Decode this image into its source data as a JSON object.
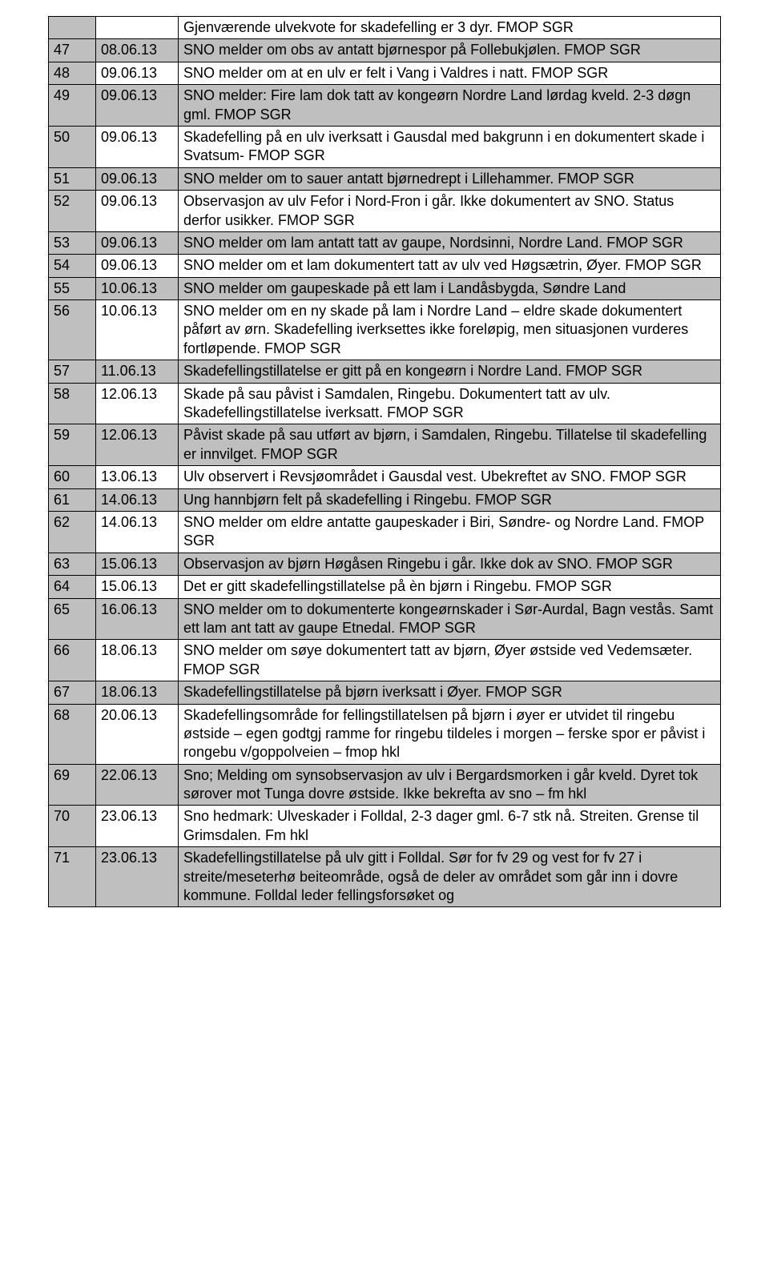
{
  "header_text": "Gjenværende ulvekvote for skadefelling er 3 dyr. FMOP SGR",
  "rows": [
    {
      "num": "47",
      "date": "08.06.13",
      "text": "SNO melder om obs av antatt bjørnespor på Follebukjølen. FMOP SGR",
      "shaded": true
    },
    {
      "num": "48",
      "date": "09.06.13",
      "text": "SNO melder om at en ulv er felt i Vang i Valdres i natt. FMOP SGR",
      "shaded": false
    },
    {
      "num": "49",
      "date": "09.06.13",
      "text": "SNO melder: Fire lam dok tatt av kongeørn Nordre Land lørdag kveld. 2-3 døgn gml. FMOP SGR",
      "shaded": true
    },
    {
      "num": "50",
      "date": "09.06.13",
      "text": "Skadefelling på en ulv iverksatt i Gausdal med bakgrunn i en dokumentert skade i Svatsum- FMOP SGR",
      "shaded": false
    },
    {
      "num": "51",
      "date": "09.06.13",
      "text": "SNO melder om to sauer antatt bjørnedrept i Lillehammer. FMOP SGR",
      "shaded": true
    },
    {
      "num": "52",
      "date": "09.06.13",
      "text": "Observasjon av ulv Fefor i Nord-Fron i går. Ikke dokumentert av SNO. Status derfor usikker. FMOP SGR",
      "shaded": false
    },
    {
      "num": "53",
      "date": "09.06.13",
      "text": "SNO melder om lam antatt tatt av gaupe, Nordsinni, Nordre Land. FMOP SGR",
      "shaded": true
    },
    {
      "num": "54",
      "date": "09.06.13",
      "text": "SNO melder om et lam dokumentert tatt av ulv ved Høgsætrin, Øyer. FMOP SGR",
      "shaded": false
    },
    {
      "num": "55",
      "date": "10.06.13",
      "text": "SNO melder om gaupeskade på ett lam i Landåsbygda, Søndre Land",
      "shaded": true
    },
    {
      "num": "56",
      "date": "10.06.13",
      "text": "SNO melder om en ny skade på lam i Nordre Land – eldre skade dokumentert påført av ørn. Skadefelling iverksettes ikke foreløpig, men situasjonen vurderes fortløpende. FMOP SGR",
      "shaded": false
    },
    {
      "num": "57",
      "date": "11.06.13",
      "text": "Skadefellingstillatelse er gitt på en kongeørn i Nordre Land. FMOP SGR",
      "shaded": true
    },
    {
      "num": "58",
      "date": "12.06.13",
      "text": "Skade på sau påvist i Samdalen, Ringebu. Dokumentert tatt av ulv. Skadefellingstillatelse iverksatt. FMOP SGR",
      "shaded": false
    },
    {
      "num": "59",
      "date": "12.06.13",
      "text": "Påvist skade på sau utført av bjørn, i Samdalen, Ringebu. Tillatelse til skadefelling er innvilget. FMOP SGR",
      "shaded": true
    },
    {
      "num": "60",
      "date": "13.06.13",
      "text": "Ulv observert i Revsjøområdet i Gausdal vest. Ubekreftet av SNO. FMOP SGR",
      "shaded": false
    },
    {
      "num": "61",
      "date": "14.06.13",
      "text": "Ung hannbjørn felt på skadefelling i Ringebu. FMOP SGR",
      "shaded": true
    },
    {
      "num": "62",
      "date": "14.06.13",
      "text": "SNO melder om eldre antatte gaupeskader i Biri, Søndre- og Nordre Land. FMOP SGR",
      "shaded": false
    },
    {
      "num": "63",
      "date": "15.06.13",
      "text": "Observasjon av bjørn Høgåsen Ringebu i går. Ikke dok av SNO. FMOP SGR",
      "shaded": true
    },
    {
      "num": "64",
      "date": "15.06.13",
      "text": "Det er gitt skadefellingstillatelse på èn bjørn i Ringebu. FMOP SGR",
      "shaded": false
    },
    {
      "num": "65",
      "date": "16.06.13",
      "text": "SNO melder om to dokumenterte kongeørnskader i Sør-Aurdal, Bagn vestås. Samt ett lam ant tatt av gaupe Etnedal. FMOP SGR",
      "shaded": true
    },
    {
      "num": "66",
      "date": "18.06.13",
      "text": "SNO melder om søye dokumentert tatt av bjørn, Øyer østside ved Vedemsæter. FMOP SGR",
      "shaded": false
    },
    {
      "num": "67",
      "date": "18.06.13",
      "text": "Skadefellingstillatelse på bjørn iverksatt i Øyer. FMOP SGR",
      "shaded": true
    },
    {
      "num": "68",
      "date": "20.06.13",
      "text": "Skadefellingsområde for fellingstillatelsen på bjørn i øyer er utvidet til ringebu østside – egen godtgj ramme for ringebu tildeles i morgen – ferske spor er påvist i rongebu v/goppolveien – fmop hkl",
      "shaded": false
    },
    {
      "num": "69",
      "date": "22.06.13",
      "text": "Sno; Melding om synsobservasjon av ulv i Bergardsmorken i går kveld. Dyret tok sørover mot Tunga dovre østside. Ikke bekrefta av sno – fm hkl",
      "shaded": true
    },
    {
      "num": "70",
      "date": "23.06.13",
      "text": "Sno hedmark: Ulveskader i Folldal, 2-3 dager gml. 6-7 stk nå. Streiten. Grense til Grimsdalen. Fm hkl",
      "shaded": false
    },
    {
      "num": "71",
      "date": "23.06.13",
      "text": "Skadefellingstillatelse på ulv gitt i Folldal. Sør for fv 29 og vest for fv 27 i streite/meseterhø beiteområde, også de deler av området som går inn i dovre kommune. Folldal leder fellingsforsøket og",
      "shaded": true
    }
  ]
}
